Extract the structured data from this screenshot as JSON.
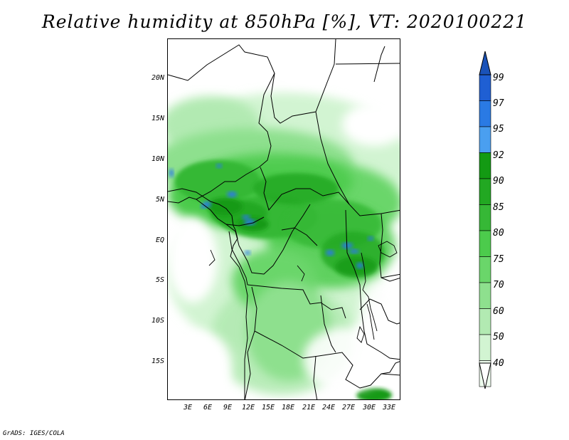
{
  "title": "Relative humidity at 850hPa [%], VT: 2020100221",
  "variable": "Relative humidity",
  "level": "850hPa",
  "valid_time": "2020100221",
  "lat_labels": [
    "20N",
    "15N",
    "10N",
    "5N",
    "EQ",
    "5S",
    "10S",
    "15S"
  ],
  "lon_labels": [
    "3E",
    "6E",
    "9E",
    "12E",
    "15E",
    "18E",
    "21E",
    "24E",
    "27E",
    "30E",
    "33E"
  ],
  "colorbar": {
    "labels": [
      "99",
      "97",
      "95",
      "92",
      "90",
      "85",
      "80",
      "75",
      "70",
      "60",
      "50",
      "40"
    ],
    "colors": [
      "#1f5fd3",
      "#2a7ae4",
      "#4a9ff0",
      "#139a13",
      "#22a822",
      "#36b836",
      "#4ccb4c",
      "#6ad66a",
      "#8ee08e",
      "#b2eab2",
      "#d2f4d2",
      "#eefcee"
    ],
    "top_color": "#1a52b8"
  },
  "credit": "GrADS: IGES/COLA"
}
